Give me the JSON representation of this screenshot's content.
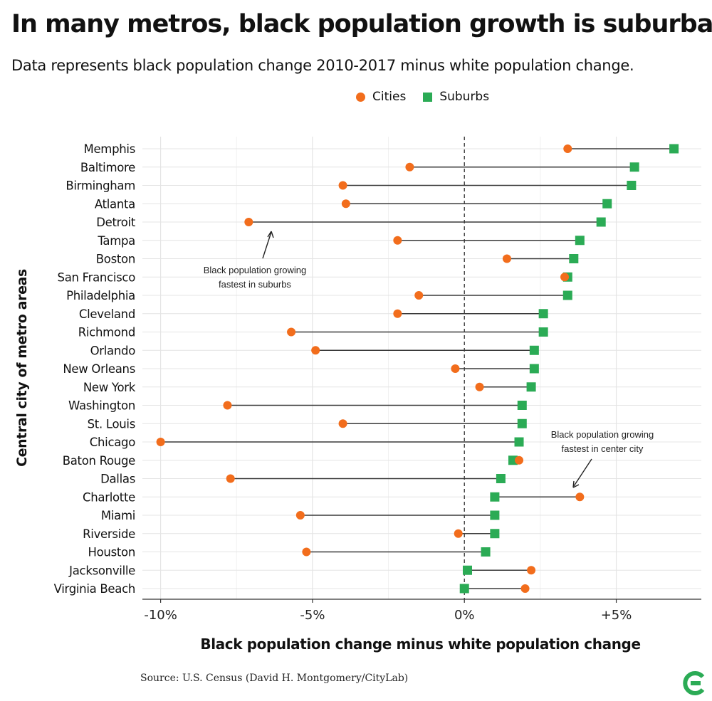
{
  "title": "In many metros, black population growth is suburban",
  "subtitle": "Data represents black population change 2010-2017 minus white population change.",
  "legend": {
    "cities": "Cities",
    "suburbs": "Suburbs"
  },
  "colors": {
    "cities": "#f26d1c",
    "suburbs": "#2bab55",
    "line": "#3a3a3a",
    "grid": "#e4e4e4"
  },
  "source": "Source: U.S. Census (David H. Montgomery/CityLab)",
  "logo_icon": "citylab-logo-icon",
  "chart_data": {
    "type": "dumbbell",
    "xlabel": "Black population change minus white population change",
    "ylabel": "Central city of metro areas",
    "xlim": [
      -10.6,
      7.8
    ],
    "x_ticks": [
      -10,
      -5,
      0,
      5
    ],
    "x_tick_labels": [
      "-10%",
      "-5%",
      "0%",
      "+5%"
    ],
    "zero_line": "dashed",
    "grid": true,
    "legend_position": "top",
    "categories": [
      "Memphis",
      "Baltimore",
      "Birmingham",
      "Atlanta",
      "Detroit",
      "Tampa",
      "Boston",
      "San Francisco",
      "Philadelphia",
      "Cleveland",
      "Richmond",
      "Orlando",
      "New Orleans",
      "New York",
      "Washington",
      "St. Louis",
      "Chicago",
      "Baton Rouge",
      "Dallas",
      "Charlotte",
      "Miami",
      "Riverside",
      "Houston",
      "Jacksonville",
      "Virginia Beach"
    ],
    "series": [
      {
        "name": "Cities",
        "values": [
          3.4,
          -1.8,
          -4.0,
          -3.9,
          -7.1,
          -2.2,
          1.4,
          3.3,
          -1.5,
          -2.2,
          -5.7,
          -4.9,
          -0.3,
          0.5,
          -7.8,
          -4.0,
          -10.0,
          1.8,
          -7.7,
          3.8,
          -5.4,
          -0.2,
          -5.2,
          2.2,
          2.0
        ]
      },
      {
        "name": "Suburbs",
        "values": [
          6.9,
          5.6,
          5.5,
          4.7,
          4.5,
          3.8,
          3.6,
          3.4,
          3.4,
          2.6,
          2.6,
          2.3,
          2.3,
          2.2,
          1.9,
          1.9,
          1.8,
          1.6,
          1.2,
          1.0,
          1.0,
          1.0,
          0.7,
          0.1,
          0.0
        ]
      }
    ],
    "annotations": [
      {
        "text_lines": [
          "Black population growing",
          "fastest in suburbs"
        ],
        "points_to": "Detroit"
      },
      {
        "text_lines": [
          "Black population growing",
          "fastest in center city"
        ],
        "points_to": "Charlotte"
      }
    ]
  }
}
